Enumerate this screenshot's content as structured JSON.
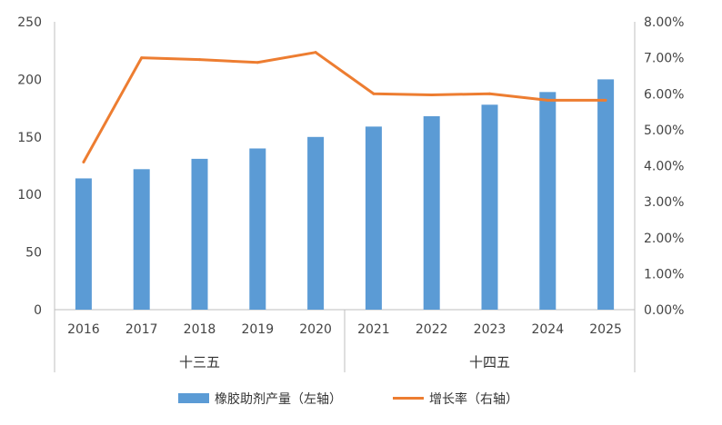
{
  "chart_data": {
    "type": "bar",
    "categories": [
      "2016",
      "2017",
      "2018",
      "2019",
      "2020",
      "2021",
      "2022",
      "2023",
      "2024",
      "2025"
    ],
    "groups": [
      {
        "label": "十三五",
        "from": 0,
        "to": 4
      },
      {
        "label": "十四五",
        "from": 5,
        "to": 9
      }
    ],
    "series": [
      {
        "name": "橡胶助剂产量（左轴）",
        "type": "bar",
        "axis": "left",
        "color": "#5b9bd5",
        "values": [
          114,
          122,
          131,
          140,
          150,
          159,
          168,
          178,
          189,
          200
        ]
      },
      {
        "name": "增长率（右轴）",
        "type": "line",
        "axis": "right",
        "color": "#ed7d31",
        "values": [
          4.1,
          7.0,
          6.95,
          6.87,
          7.15,
          6.0,
          5.97,
          6.0,
          5.82,
          5.82
        ]
      }
    ],
    "left_axis": {
      "min": 0,
      "max": 250,
      "ticks": [
        "0",
        "50",
        "100",
        "150",
        "200",
        "250"
      ]
    },
    "right_axis": {
      "min": 0,
      "max": 8,
      "ticks": [
        "0.00%",
        "1.00%",
        "2.00%",
        "3.00%",
        "4.00%",
        "5.00%",
        "6.00%",
        "7.00%",
        "8.00%"
      ]
    },
    "grid": false,
    "legend_position": "bottom"
  }
}
